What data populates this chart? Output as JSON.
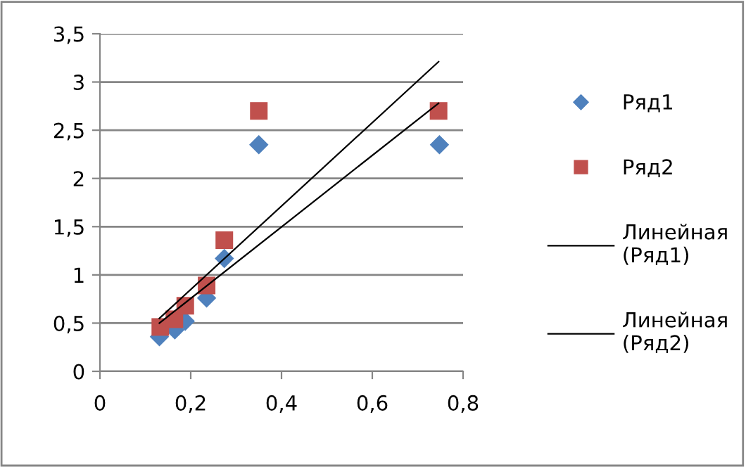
{
  "chart_data": {
    "type": "scatter",
    "series": [
      {
        "name": "Ряд1",
        "marker": "diamond",
        "color": "#4f81bd",
        "x": [
          0.131,
          0.165,
          0.188,
          0.235,
          0.274,
          0.35,
          0.748
        ],
        "values": [
          0.36,
          0.43,
          0.52,
          0.76,
          1.17,
          2.35,
          2.35
        ]
      },
      {
        "name": "Ряд2",
        "marker": "square",
        "color": "#c0504d",
        "x": [
          0.133,
          0.164,
          0.188,
          0.235,
          0.274,
          0.35,
          0.746
        ],
        "values": [
          0.46,
          0.54,
          0.68,
          0.89,
          1.36,
          2.7,
          2.7
        ]
      },
      {
        "name": "Линейная\n(Ряд1)",
        "type": "line",
        "marker": "none",
        "color": "#000000",
        "x": [
          0.131,
          0.746
        ],
        "values": [
          0.5,
          2.78
        ]
      },
      {
        "name": "Линейная\n(Ряд2)",
        "type": "line",
        "marker": "none",
        "color": "#000000",
        "x": [
          0.131,
          0.746
        ],
        "values": [
          0.55,
          3.21
        ]
      }
    ],
    "xlim": [
      0,
      0.8
    ],
    "xticks": [
      {
        "value": 0,
        "label": "0"
      },
      {
        "value": 0.2,
        "label": "0,2"
      },
      {
        "value": 0.4,
        "label": "0,4"
      },
      {
        "value": 0.6,
        "label": "0,6"
      },
      {
        "value": 0.8,
        "label": "0,8"
      }
    ],
    "ylim": [
      0,
      3.5
    ],
    "yticks": [
      {
        "value": 0,
        "label": "0"
      },
      {
        "value": 0.5,
        "label": "0,5"
      },
      {
        "value": 1,
        "label": "1"
      },
      {
        "value": 1.5,
        "label": "1,5"
      },
      {
        "value": 2,
        "label": "2"
      },
      {
        "value": 2.5,
        "label": "2,5"
      },
      {
        "value": 3,
        "label": "3"
      },
      {
        "value": 3.5,
        "label": "3,5"
      }
    ],
    "grid": "y",
    "legend": "right"
  }
}
